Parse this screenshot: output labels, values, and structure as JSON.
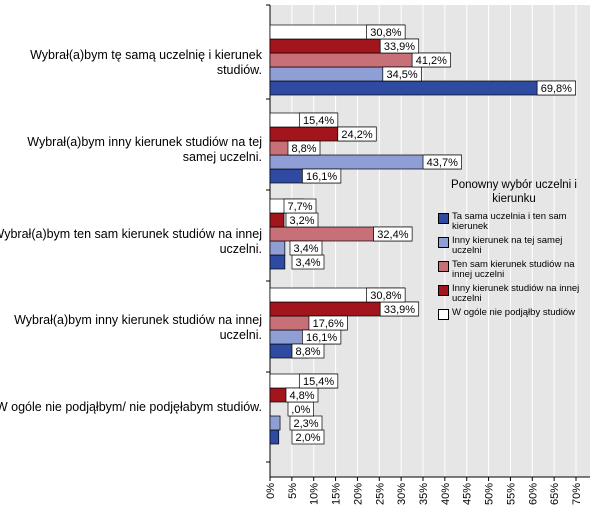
{
  "chart_data": {
    "type": "bar",
    "orientation": "horizontal",
    "categories": [
      "Wybrał(a)bym tę samą uczelnię i kierunek studiów.",
      "Wybrał(a)bym inny kierunek studiów na tej samej uczelni.",
      "Wybrał(a)bym ten sam kierunek studiów na innej uczelni.",
      "Wybrał(a)bym inny kierunek studiów na innej uczelni.",
      "W ogóle nie podjąłbym/ nie podjęłabym studiów."
    ],
    "series": [
      {
        "name": "Ta sama uczelnia i ten sam kierunek",
        "color": "#2f4aa1",
        "values": [
          69.8,
          16.1,
          3.4,
          8.8,
          2.0
        ],
        "labels": [
          "69,8%",
          "16,1%",
          "3,4%",
          "8,8%",
          "2,0%"
        ]
      },
      {
        "name": "Inny kierunek na tej samej uczelni",
        "color": "#8f9fd6",
        "values": [
          34.5,
          43.7,
          3.4,
          16.1,
          2.3
        ],
        "labels": [
          "34,5%",
          "43,7%",
          "3,4%",
          "16,1%",
          "2,3%"
        ]
      },
      {
        "name": "Ten sam kierunek studiów na innej uczelni",
        "color": "#c87078",
        "values": [
          41.2,
          8.8,
          32.4,
          17.6,
          0.0
        ],
        "labels": [
          "41,2%",
          "8,8%",
          "32,4%",
          "17,6%",
          ",0%"
        ]
      },
      {
        "name": "Inny kierunek studiów na innej uczelni",
        "color": "#a3151c",
        "values": [
          33.9,
          24.2,
          3.2,
          33.9,
          4.8
        ],
        "labels": [
          "33,9%",
          "24,2%",
          "3,2%",
          "33,9%",
          "4,8%"
        ]
      },
      {
        "name": "W ogóle nie podjąłby studiów",
        "color": "#ffffff",
        "values": [
          30.8,
          15.4,
          7.7,
          30.8,
          15.4
        ],
        "labels": [
          "30,8%",
          "15,4%",
          "7,7%",
          "30,8%",
          "15,4%"
        ]
      }
    ],
    "xlim": [
      0,
      70
    ],
    "x_ticks": [
      "0%",
      "5%",
      "10%",
      "15%",
      "20%",
      "25%",
      "30%",
      "35%",
      "40%",
      "45%",
      "50%",
      "55%",
      "60%",
      "65%",
      "70%"
    ],
    "grid": true,
    "legend": {
      "title": "Ponowny wybór uczelni i kierunku",
      "placement": "right",
      "items": [
        "Ta sama uczelnia i ten sam kierunek",
        "Inny kierunek na tej samej uczelni",
        "Ten sam kierunek studiów na innej uczelni",
        "Inny kierunek studiów na innej uczelni",
        "W ogóle nie podjąłby studiów"
      ]
    }
  }
}
